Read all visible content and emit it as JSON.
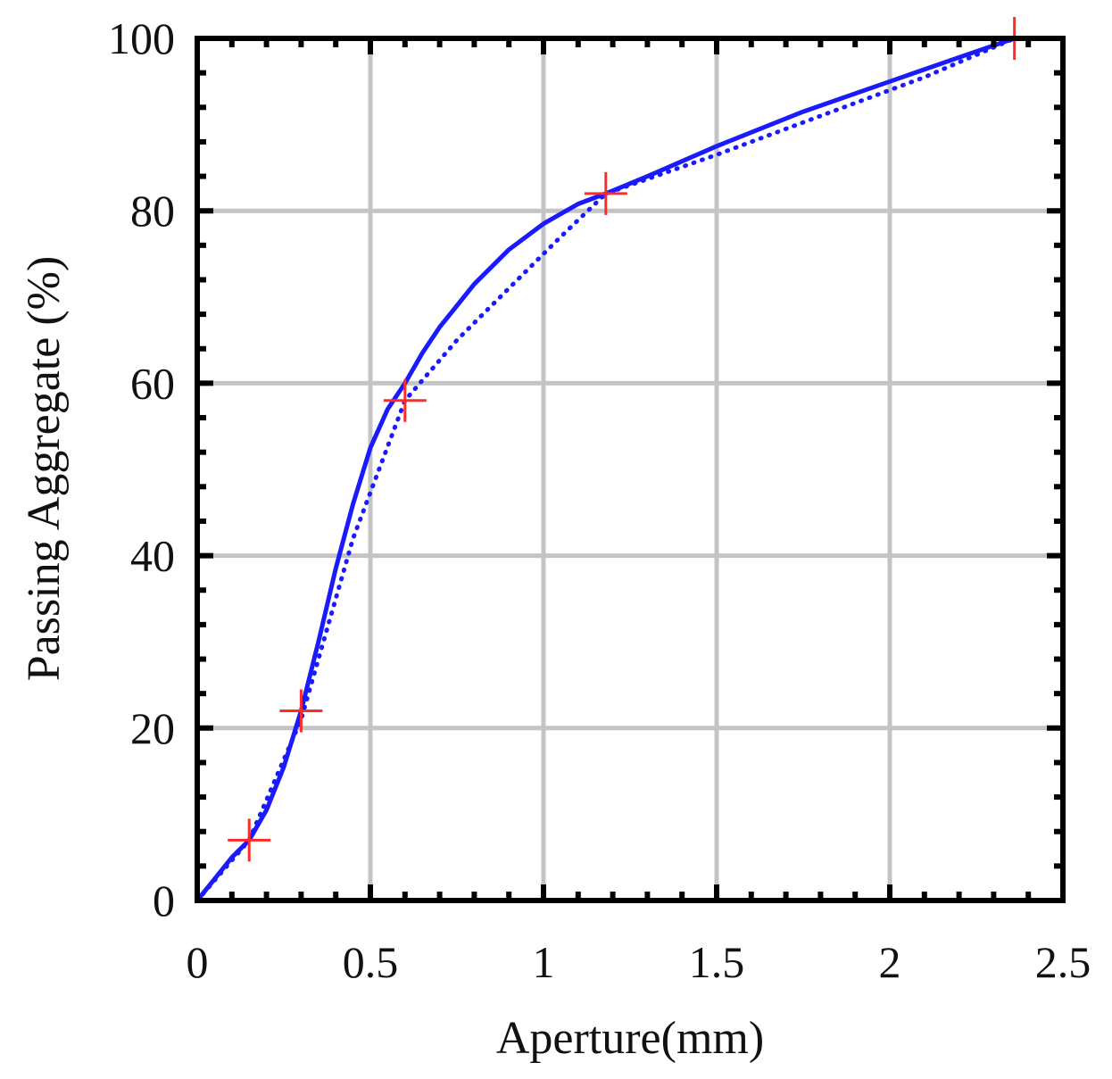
{
  "chart_data": {
    "type": "line",
    "title": "",
    "xlabel": "Aperture(mm)",
    "ylabel": "Passing Aggregate (%)",
    "xlim": [
      0,
      2.5
    ],
    "ylim": [
      0,
      100
    ],
    "grid": true,
    "x_ticks": [
      "0",
      "0.5",
      "1",
      "1.5",
      "2",
      "2.5"
    ],
    "y_ticks": [
      "0",
      "20",
      "40",
      "60",
      "80",
      "100"
    ],
    "series": [
      {
        "style": "solid",
        "color": "#1a1aff",
        "x": [
          0,
          0.05,
          0.1,
          0.15,
          0.2,
          0.25,
          0.3,
          0.35,
          0.4,
          0.45,
          0.5,
          0.55,
          0.6,
          0.65,
          0.7,
          0.75,
          0.8,
          0.9,
          1.0,
          1.1,
          1.18,
          1.3,
          1.5,
          1.75,
          2.0,
          2.2,
          2.36
        ],
        "y": [
          0,
          2.5,
          5,
          7,
          10.5,
          15.5,
          22,
          30,
          38.5,
          46,
          52.5,
          57,
          60,
          63.5,
          66.5,
          69,
          71.5,
          75.5,
          78.5,
          80.8,
          82,
          84,
          87.5,
          91.5,
          95,
          97.8,
          100
        ]
      },
      {
        "style": "dotted",
        "color": "#1a1aff",
        "x": [
          0,
          0.15,
          0.3,
          0.45,
          0.6,
          0.75,
          0.9,
          1.05,
          1.18,
          1.5,
          1.8,
          2.1,
          2.36
        ],
        "y": [
          0,
          7,
          21,
          42,
          58,
          65,
          71,
          77,
          82,
          86.5,
          91,
          95.5,
          100
        ]
      }
    ],
    "markers": {
      "symbol": "+",
      "color": "#ff2a2a",
      "x": [
        0.15,
        0.3,
        0.6,
        1.18,
        2.36
      ],
      "y": [
        7,
        22,
        58,
        82,
        100
      ]
    }
  }
}
